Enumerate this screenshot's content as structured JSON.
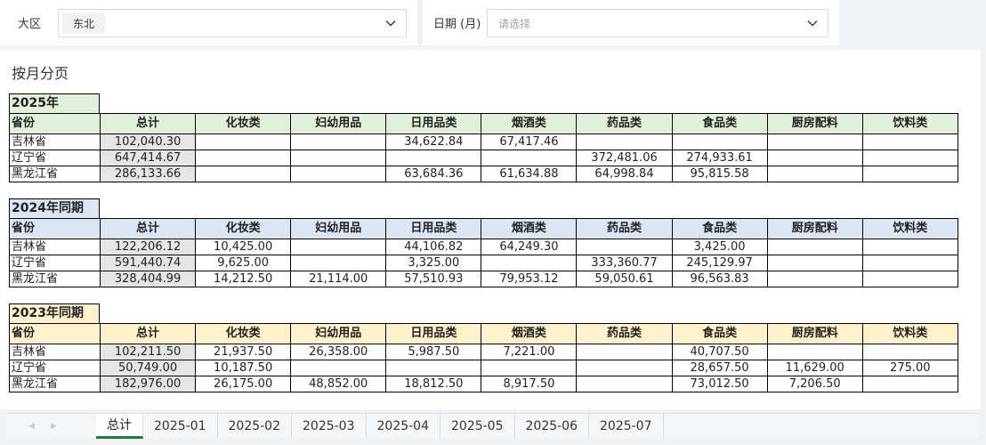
{
  "filters": {
    "region": {
      "label": "大区",
      "value": "东北"
    },
    "date": {
      "label": "日期 (月)",
      "placeholder": "请选择"
    }
  },
  "page_title": "按月分页",
  "columns": [
    "省份",
    "总计",
    "化妆类",
    "妇幼用品",
    "日用品类",
    "烟酒类",
    "药品类",
    "食品类",
    "厨房配料",
    "饮料类"
  ],
  "blocks": [
    {
      "title": "2025年",
      "rows": [
        [
          "吉林省",
          "102,040.30",
          "",
          "",
          "34,622.84",
          "67,417.46",
          "",
          "",
          "",
          ""
        ],
        [
          "辽宁省",
          "647,414.67",
          "",
          "",
          "",
          "",
          "372,481.06",
          "274,933.61",
          "",
          ""
        ],
        [
          "黑龙江省",
          "286,133.66",
          "",
          "",
          "63,684.36",
          "61,634.88",
          "64,998.84",
          "95,815.58",
          "",
          ""
        ]
      ]
    },
    {
      "title": "2024年同期",
      "rows": [
        [
          "吉林省",
          "122,206.12",
          "10,425.00",
          "",
          "44,106.82",
          "64,249.30",
          "",
          "3,425.00",
          "",
          ""
        ],
        [
          "辽宁省",
          "591,440.74",
          "9,625.00",
          "",
          "3,325.00",
          "",
          "333,360.77",
          "245,129.97",
          "",
          ""
        ],
        [
          "黑龙江省",
          "328,404.99",
          "14,212.50",
          "21,114.00",
          "57,510.93",
          "79,953.12",
          "59,050.61",
          "96,563.83",
          "",
          ""
        ]
      ]
    },
    {
      "title": "2023年同期",
      "rows": [
        [
          "吉林省",
          "102,211.50",
          "21,937.50",
          "26,358.00",
          "5,987.50",
          "7,221.00",
          "",
          "40,707.50",
          "",
          ""
        ],
        [
          "辽宁省",
          "50,749.00",
          "10,187.50",
          "",
          "",
          "",
          "",
          "28,657.50",
          "11,629.00",
          "275.00"
        ],
        [
          "黑龙江省",
          "182,976.00",
          "26,175.00",
          "48,852.00",
          "18,812.50",
          "8,917.50",
          "",
          "73,012.50",
          "7,206.50",
          ""
        ]
      ]
    }
  ],
  "tabs": [
    "总计",
    "2025-01",
    "2025-02",
    "2025-03",
    "2025-04",
    "2025-05",
    "2025-06",
    "2025-07"
  ],
  "active_tab": 0,
  "icons": {
    "dropdown": "chevron-down-icon",
    "prev": "triangle-left-icon",
    "next": "triangle-right-icon"
  },
  "colors": {
    "g2025": "#e2efda",
    "g2024": "#dbe5f3",
    "g2023": "#fff1cc",
    "total_cell": "#e5e5e5",
    "active_tab": "#1f7a3d"
  }
}
